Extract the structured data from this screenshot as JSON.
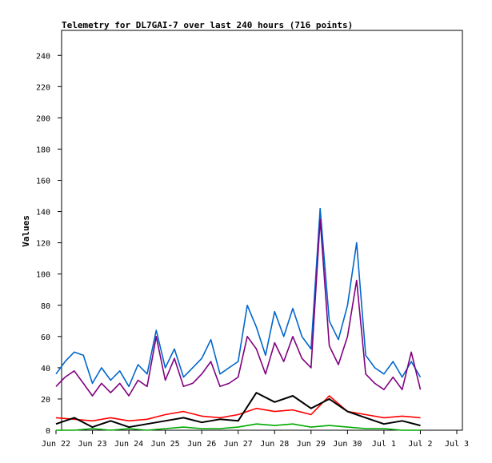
{
  "chart_data": {
    "type": "line",
    "title": "Telemetry for DL7GAI-7 over last 240 hours (716 points)",
    "xlabel": "",
    "ylabel": "Values",
    "ylim": [
      0,
      256
    ],
    "y_ticks": [
      0,
      20,
      40,
      60,
      80,
      100,
      120,
      140,
      160,
      180,
      200,
      220,
      240
    ],
    "x_ticks": [
      "Jun 22",
      "Jun 23",
      "Jun 24",
      "Jun 25",
      "Jun 26",
      "Jun 27",
      "Jun 28",
      "Jun 29",
      "Jun 30",
      "Jul 1",
      "Jul 2",
      "Jul 3"
    ],
    "grid": false,
    "legend": "none",
    "series": [
      {
        "color": "#0066cc",
        "x": [
          0,
          0.25,
          0.5,
          0.75,
          1,
          1.25,
          1.5,
          1.75,
          2,
          2.25,
          2.5,
          2.75,
          3,
          3.25,
          3.5,
          3.75,
          4,
          4.25,
          4.5,
          4.75,
          5,
          5.25,
          5.5,
          5.75,
          6,
          6.25,
          6.5,
          6.75,
          7,
          7.25,
          7.5,
          7.75,
          8,
          8.25,
          8.5,
          8.75,
          9,
          9.25,
          9.5,
          9.75,
          10
        ],
        "values": [
          36,
          44,
          50,
          48,
          30,
          40,
          32,
          38,
          28,
          42,
          36,
          64,
          40,
          52,
          34,
          40,
          46,
          58,
          36,
          40,
          44,
          80,
          66,
          48,
          76,
          60,
          78,
          60,
          52,
          142,
          70,
          58,
          80,
          120,
          48,
          40,
          36,
          44,
          34,
          44,
          34
        ]
      },
      {
        "color": "#800080",
        "x": [
          0,
          0.25,
          0.5,
          0.75,
          1,
          1.25,
          1.5,
          1.75,
          2,
          2.25,
          2.5,
          2.75,
          3,
          3.25,
          3.5,
          3.75,
          4,
          4.25,
          4.5,
          4.75,
          5,
          5.25,
          5.5,
          5.75,
          6,
          6.25,
          6.5,
          6.75,
          7,
          7.25,
          7.5,
          7.75,
          8,
          8.25,
          8.5,
          8.75,
          9,
          9.25,
          9.5,
          9.75,
          10
        ],
        "values": [
          28,
          34,
          38,
          30,
          22,
          30,
          24,
          30,
          22,
          32,
          28,
          60,
          32,
          46,
          28,
          30,
          36,
          44,
          28,
          30,
          34,
          60,
          52,
          36,
          56,
          44,
          60,
          46,
          40,
          135,
          54,
          42,
          60,
          96,
          36,
          30,
          26,
          34,
          26,
          50,
          26
        ]
      },
      {
        "color": "#ff0000",
        "x": [
          0,
          0.5,
          1,
          1.5,
          2,
          2.5,
          3,
          3.5,
          4,
          4.5,
          5,
          5.5,
          6,
          6.5,
          7,
          7.5,
          8,
          8.5,
          9,
          9.5,
          10
        ],
        "values": [
          8,
          7,
          6,
          8,
          6,
          7,
          10,
          12,
          9,
          8,
          10,
          14,
          12,
          13,
          10,
          22,
          12,
          10,
          8,
          9,
          8
        ]
      },
      {
        "color": "#000000",
        "x": [
          0,
          0.5,
          1,
          1.5,
          2,
          2.5,
          3,
          3.5,
          4,
          4.5,
          5,
          5.5,
          6,
          6.5,
          7,
          7.5,
          8,
          8.5,
          9,
          9.5,
          10
        ],
        "values": [
          4,
          8,
          2,
          6,
          2,
          4,
          6,
          8,
          5,
          7,
          6,
          24,
          18,
          22,
          14,
          20,
          12,
          8,
          4,
          6,
          3
        ]
      },
      {
        "color": "#00aa00",
        "x": [
          0,
          0.5,
          1,
          1.5,
          2,
          2.5,
          3,
          3.5,
          4,
          4.5,
          5,
          5.5,
          6,
          6.5,
          7,
          7.5,
          8,
          8.5,
          9,
          9.5,
          10
        ],
        "values": [
          0,
          0,
          1,
          0,
          1,
          0,
          1,
          2,
          1,
          1,
          2,
          4,
          3,
          4,
          2,
          3,
          2,
          1,
          1,
          0,
          0
        ]
      }
    ]
  }
}
